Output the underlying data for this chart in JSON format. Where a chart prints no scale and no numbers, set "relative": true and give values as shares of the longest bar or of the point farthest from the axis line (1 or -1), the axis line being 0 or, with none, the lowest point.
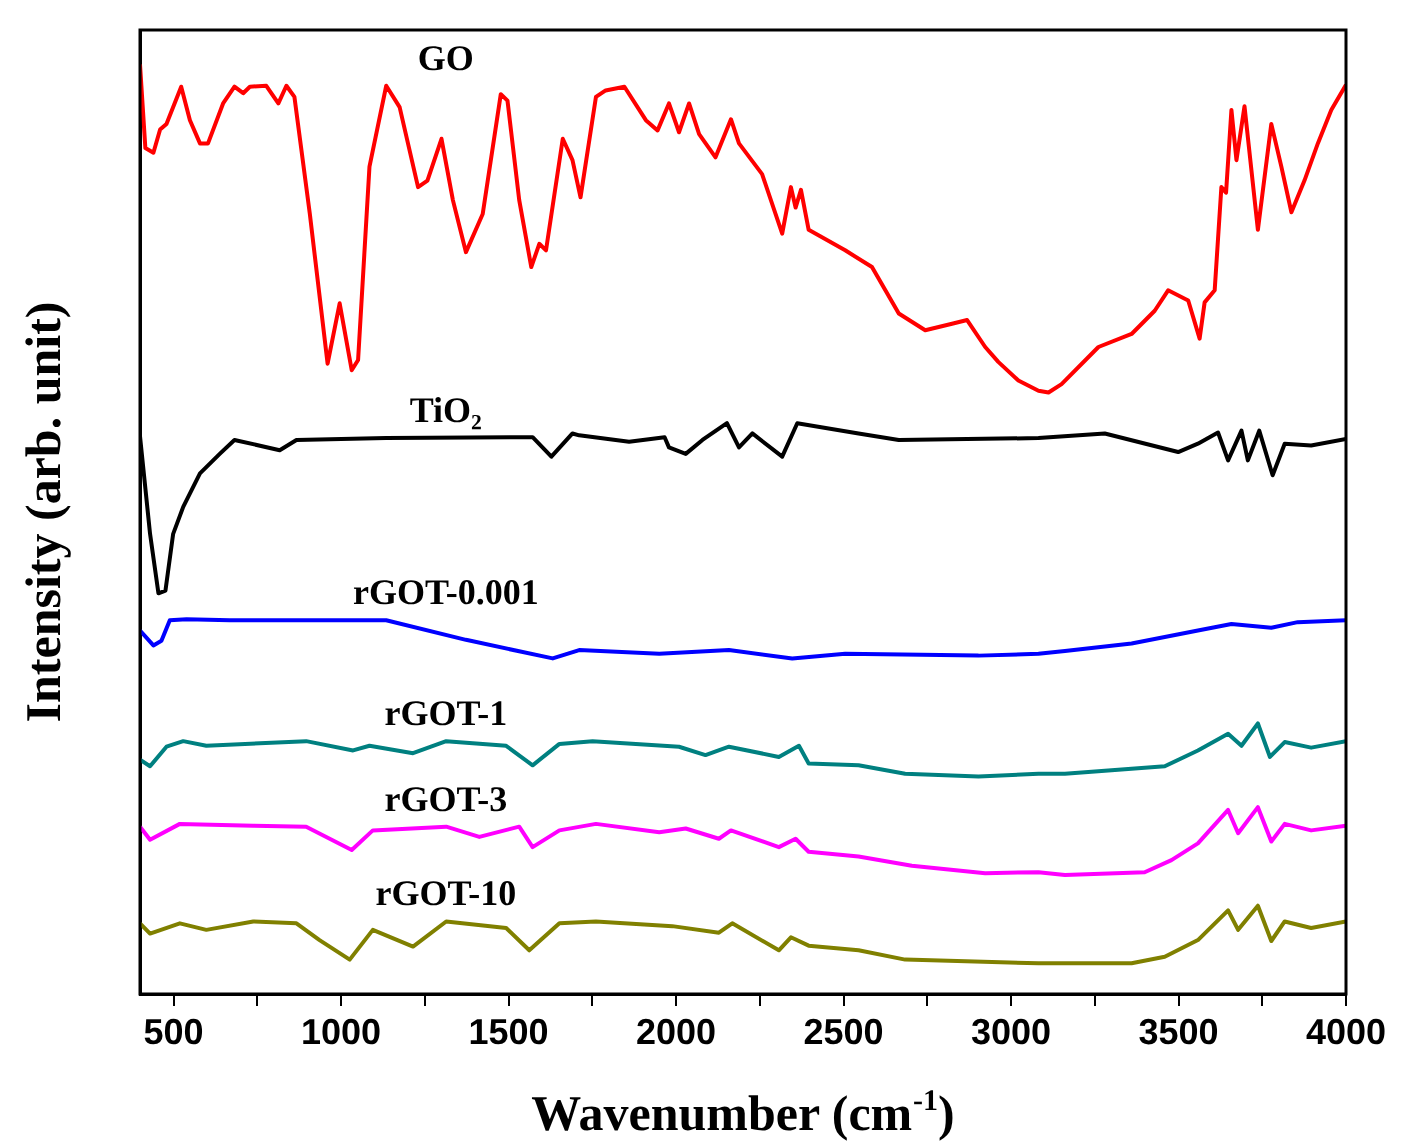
{
  "chart_data": {
    "type": "line",
    "xlabel": "Wavenumber (cm$^{-1}$)",
    "ylabel": "Intensity (arb. unit)",
    "relative": true,
    "marker": "none",
    "legend": false,
    "grid": false,
    "xlim": [
      400,
      4000
    ],
    "xticks": [
      {
        "value": 500,
        "label": "500"
      },
      {
        "value": 750,
        "label": null
      },
      {
        "value": 1000,
        "label": "1000"
      },
      {
        "value": 1250,
        "label": null
      },
      {
        "value": 1500,
        "label": "1500"
      },
      {
        "value": 1750,
        "label": null
      },
      {
        "value": 2000,
        "label": "2000"
      },
      {
        "value": 2250,
        "label": null
      },
      {
        "value": 2500,
        "label": "2500"
      },
      {
        "value": 2750,
        "label": null
      },
      {
        "value": 3000,
        "label": "3000"
      },
      {
        "value": 3250,
        "label": null
      },
      {
        "value": 3500,
        "label": "3500"
      },
      {
        "value": 3750,
        "label": null
      },
      {
        "value": 4000,
        "label": "4000"
      }
    ],
    "series": [
      {
        "name": "GO",
        "color": "#ff0000",
        "x": [
          400,
          416,
          440,
          460,
          479,
          523,
          549,
          579,
          603,
          648,
          682,
          708,
          728,
          777,
          813,
          837,
          861,
          907,
          960,
          996,
          1032,
          1051,
          1085,
          1135,
          1175,
          1230,
          1258,
          1300,
          1334,
          1373,
          1423,
          1477,
          1497,
          1532,
          1568,
          1592,
          1612,
          1662,
          1691,
          1715,
          1761,
          1790,
          1846,
          1910,
          1945,
          1979,
          2009,
          2039,
          2069,
          2118,
          2164,
          2188,
          2257,
          2317,
          2343,
          2357,
          2373,
          2396,
          2505,
          2585,
          2665,
          2744,
          2824,
          2869,
          2923,
          2962,
          3022,
          3082,
          3112,
          3151,
          3261,
          3360,
          3429,
          3469,
          3529,
          3563,
          3578,
          3608,
          3628,
          3642,
          3658,
          3673,
          3697,
          3737,
          3777,
          3807,
          3837,
          3876,
          3916,
          3956,
          4000
        ],
        "values": [
          1.0,
          0.91,
          0.905,
          0.93,
          0.936,
          0.976,
          0.94,
          0.915,
          0.915,
          0.958,
          0.976,
          0.969,
          0.976,
          0.977,
          0.958,
          0.977,
          0.965,
          0.839,
          0.678,
          0.743,
          0.671,
          0.682,
          0.89,
          0.977,
          0.954,
          0.868,
          0.875,
          0.92,
          0.854,
          0.798,
          0.839,
          0.968,
          0.961,
          0.854,
          0.782,
          0.807,
          0.8,
          0.92,
          0.897,
          0.857,
          0.965,
          0.972,
          0.976,
          0.94,
          0.929,
          0.958,
          0.927,
          0.958,
          0.925,
          0.9,
          0.941,
          0.915,
          0.882,
          0.818,
          0.868,
          0.846,
          0.865,
          0.822,
          0.8,
          0.782,
          0.732,
          0.714,
          0.721,
          0.725,
          0.696,
          0.68,
          0.66,
          0.649,
          0.647,
          0.656,
          0.696,
          0.71,
          0.735,
          0.757,
          0.746,
          0.705,
          0.744,
          0.757,
          0.868,
          0.862,
          0.951,
          0.897,
          0.955,
          0.822,
          0.936,
          0.89,
          0.841,
          0.875,
          0.915,
          0.951,
          0.978
        ]
      },
      {
        "name": "TiO₂",
        "color": "#000000",
        "x": [
          400,
          430,
          455,
          476,
          499,
          529,
          579,
          638,
          682,
          817,
          867,
          1135,
          1572,
          1628,
          1691,
          1711,
          1860,
          1966,
          1979,
          2029,
          2079,
          2152,
          2188,
          2228,
          2317,
          2362,
          2545,
          2665,
          3082,
          3280,
          3499,
          3558,
          3618,
          3648,
          3688,
          3707,
          3741,
          3781,
          3817,
          3896,
          4000
        ],
        "values": [
          0.6,
          0.495,
          0.431,
          0.434,
          0.495,
          0.524,
          0.56,
          0.581,
          0.596,
          0.585,
          0.596,
          0.598,
          0.599,
          0.578,
          0.603,
          0.601,
          0.594,
          0.599,
          0.588,
          0.581,
          0.596,
          0.614,
          0.588,
          0.603,
          0.578,
          0.614,
          0.603,
          0.596,
          0.598,
          0.603,
          0.583,
          0.592,
          0.604,
          0.574,
          0.606,
          0.574,
          0.606,
          0.558,
          0.592,
          0.59,
          0.597
        ]
      },
      {
        "name": "rGOT-0.001",
        "color": "#0000ff",
        "x": [
          400,
          440,
          464,
          489,
          539,
          668,
          1135,
          1373,
          1632,
          1711,
          1950,
          2158,
          2347,
          2505,
          2903,
          3082,
          3161,
          3360,
          3558,
          3658,
          3777,
          3856,
          4000
        ],
        "values": [
          0.391,
          0.375,
          0.38,
          0.402,
          0.403,
          0.402,
          0.402,
          0.381,
          0.361,
          0.37,
          0.366,
          0.37,
          0.361,
          0.366,
          0.364,
          0.366,
          0.369,
          0.377,
          0.391,
          0.398,
          0.394,
          0.4,
          0.402
        ]
      },
      {
        "name": "rGOT-1",
        "color": "#008080",
        "x": [
          400,
          430,
          479,
          529,
          598,
          896,
          1036,
          1085,
          1215,
          1314,
          1493,
          1572,
          1652,
          1751,
          2009,
          2088,
          2158,
          2307,
          2367,
          2396,
          2545,
          2684,
          2903,
          3082,
          3161,
          3459,
          3558,
          3648,
          3688,
          3737,
          3773,
          3817,
          3896,
          4000
        ],
        "values": [
          0.252,
          0.245,
          0.266,
          0.272,
          0.267,
          0.272,
          0.262,
          0.267,
          0.259,
          0.272,
          0.267,
          0.246,
          0.269,
          0.272,
          0.266,
          0.257,
          0.266,
          0.255,
          0.267,
          0.248,
          0.246,
          0.237,
          0.234,
          0.237,
          0.237,
          0.245,
          0.262,
          0.28,
          0.267,
          0.291,
          0.255,
          0.271,
          0.265,
          0.272
        ]
      },
      {
        "name": "rGOT-3",
        "color": "#ff00ff",
        "x": [
          400,
          430,
          519,
          738,
          896,
          1032,
          1095,
          1314,
          1413,
          1532,
          1572,
          1652,
          1761,
          1950,
          2029,
          2128,
          2164,
          2307,
          2357,
          2396,
          2545,
          2704,
          2923,
          3082,
          3161,
          3399,
          3479,
          3558,
          3648,
          3678,
          3737,
          3777,
          3817,
          3896,
          4000
        ],
        "values": [
          0.18,
          0.166,
          0.183,
          0.181,
          0.18,
          0.155,
          0.176,
          0.18,
          0.169,
          0.18,
          0.158,
          0.176,
          0.183,
          0.174,
          0.178,
          0.167,
          0.176,
          0.158,
          0.167,
          0.153,
          0.148,
          0.138,
          0.13,
          0.131,
          0.128,
          0.131,
          0.144,
          0.162,
          0.198,
          0.173,
          0.201,
          0.164,
          0.183,
          0.176,
          0.181
        ]
      },
      {
        "name": "rGOT-10",
        "color": "#808000",
        "x": [
          400,
          430,
          519,
          598,
          738,
          867,
          936,
          1026,
          1095,
          1215,
          1314,
          1493,
          1562,
          1652,
          1761,
          1989,
          2128,
          2168,
          2307,
          2343,
          2396,
          2545,
          2684,
          3082,
          3360,
          3459,
          3558,
          3648,
          3678,
          3737,
          3777,
          3817,
          3896,
          4000
        ],
        "values": [
          0.076,
          0.065,
          0.076,
          0.069,
          0.078,
          0.076,
          0.058,
          0.037,
          0.069,
          0.051,
          0.078,
          0.071,
          0.047,
          0.076,
          0.078,
          0.073,
          0.066,
          0.076,
          0.047,
          0.061,
          0.052,
          0.047,
          0.037,
          0.033,
          0.033,
          0.04,
          0.058,
          0.09,
          0.069,
          0.095,
          0.057,
          0.078,
          0.071,
          0.078
        ]
      }
    ]
  }
}
